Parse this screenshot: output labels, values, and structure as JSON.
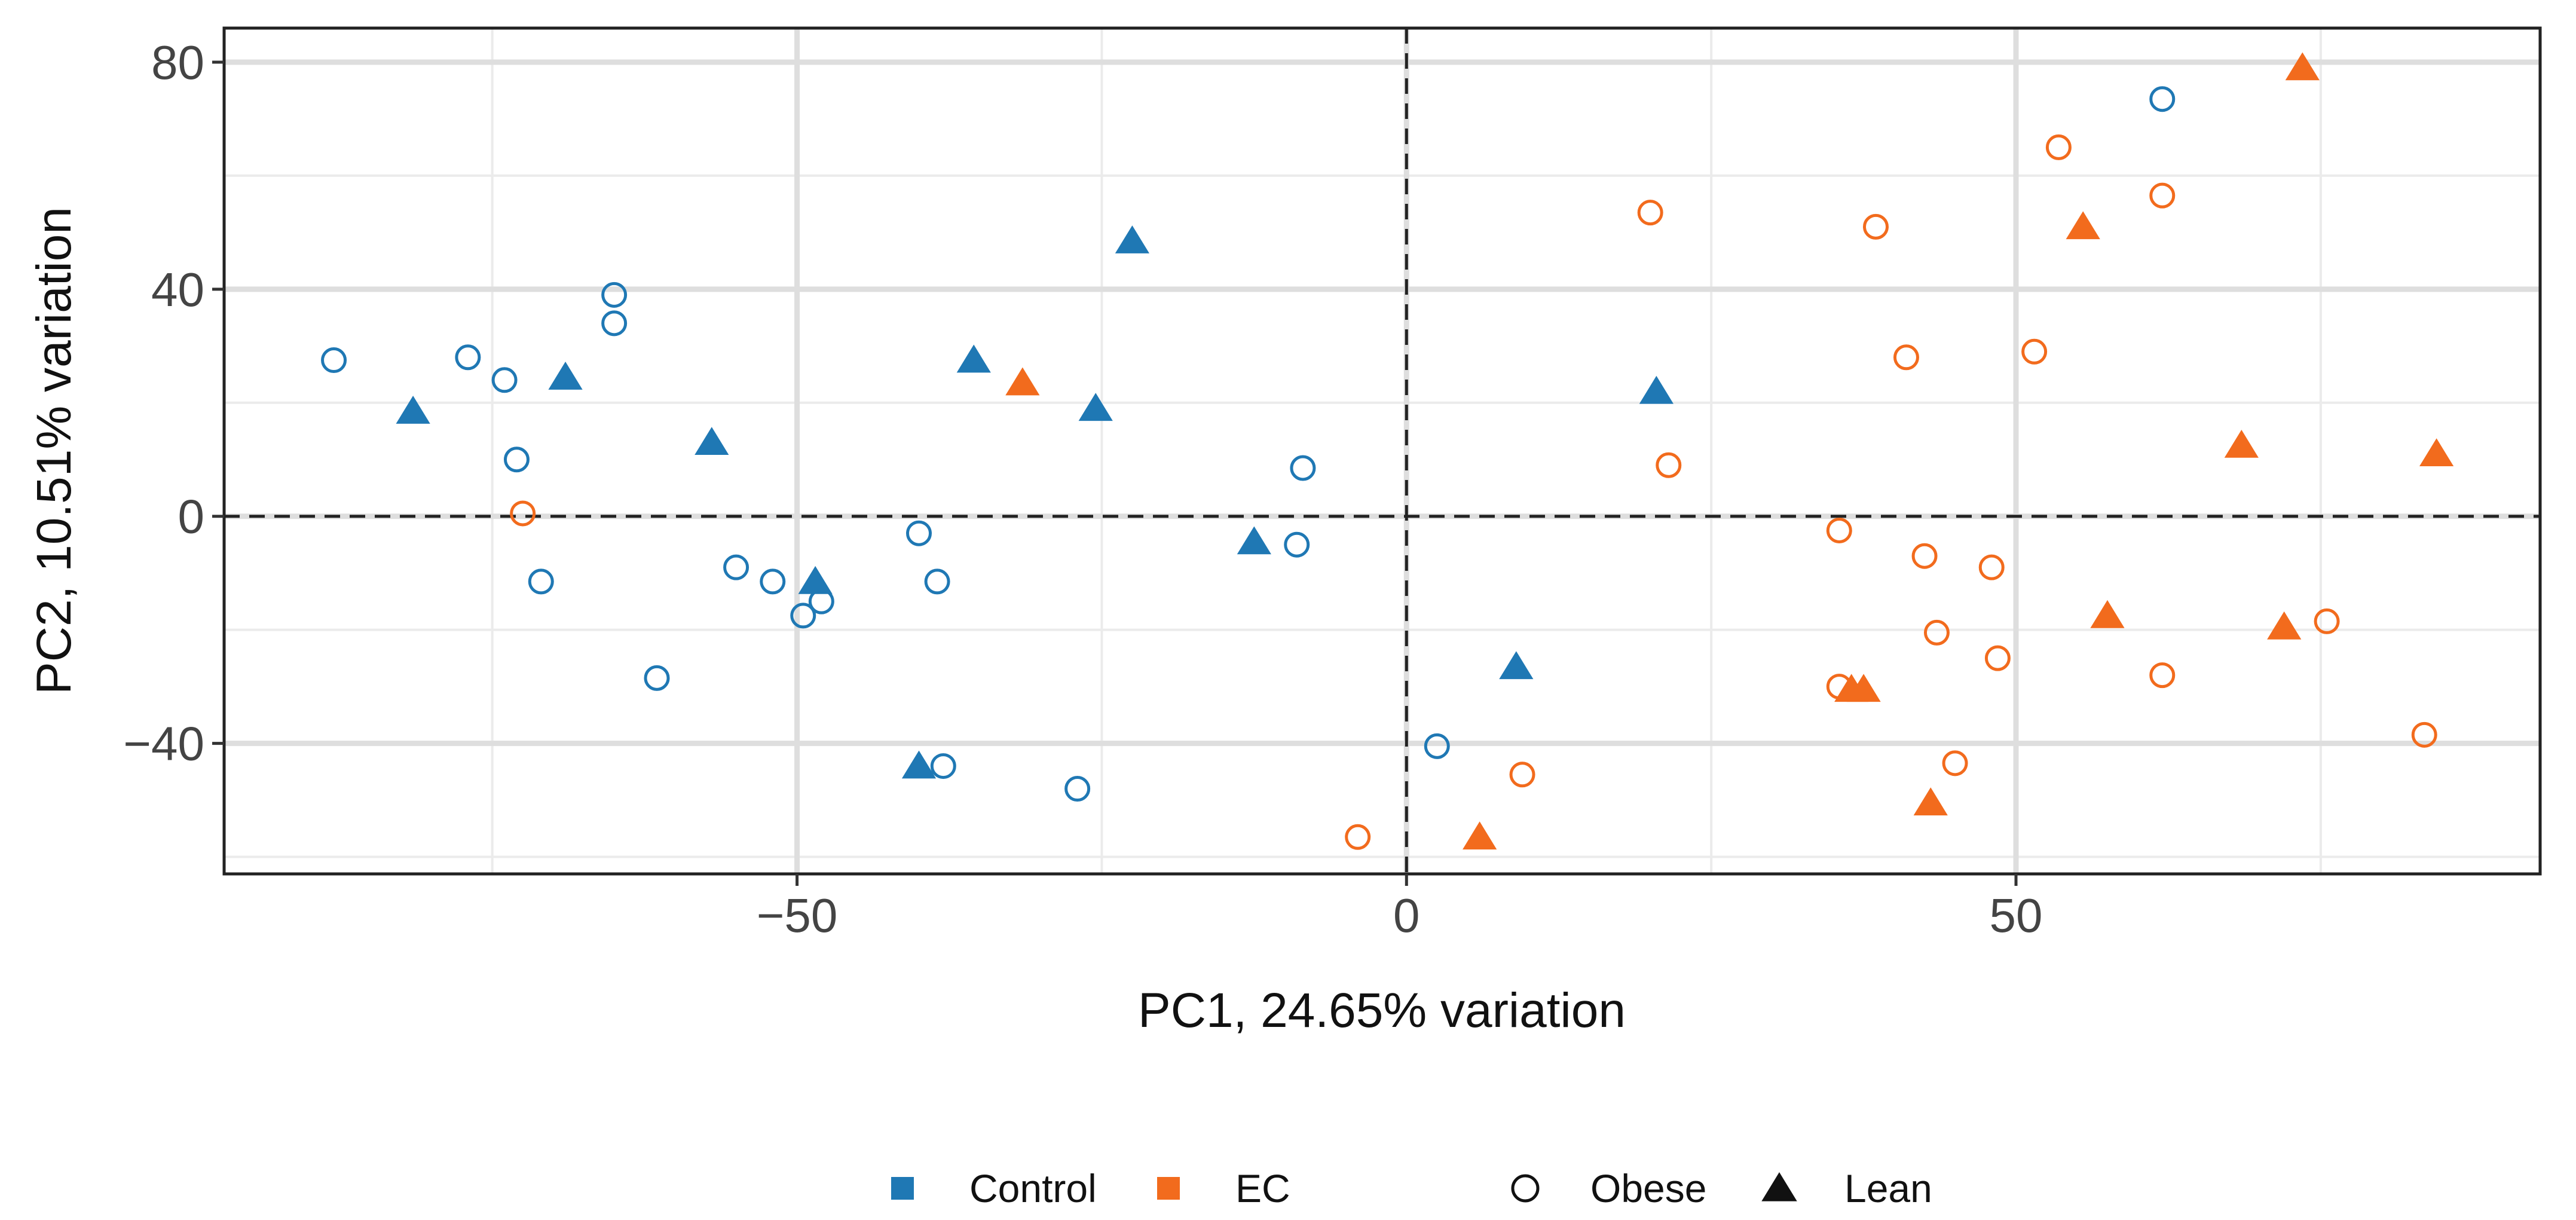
{
  "chart_data": {
    "type": "scatter",
    "xlabel": "PC1, 24.65% variation",
    "ylabel": "PC2, 10.51% variation",
    "xlim": [
      -97,
      93
    ],
    "ylim": [
      -63,
      86
    ],
    "x_ticks": [
      -50,
      0,
      50
    ],
    "x_tick_labels": [
      "−50",
      "0",
      "50"
    ],
    "y_ticks": [
      -40,
      0,
      40,
      80
    ],
    "y_tick_labels": [
      "−40",
      "0",
      "40",
      "80"
    ],
    "x_minor_gridlines": [
      -75,
      -25,
      25,
      75
    ],
    "y_minor_gridlines": [
      -60,
      -20,
      20,
      60
    ],
    "reference_lines": {
      "x": 0,
      "y": 0,
      "style": "dashed"
    },
    "grid": true,
    "colors": {
      "Control": "#1f78b4",
      "EC": "#f26b1d"
    },
    "legend": {
      "position": "bottom",
      "color_entries": [
        {
          "label": "Control",
          "color": "#1f78b4"
        },
        {
          "label": "EC",
          "color": "#f26b1d"
        }
      ],
      "shape_entries": [
        {
          "label": "Obese",
          "shape": "circle-open"
        },
        {
          "label": "Lean",
          "shape": "triangle-filled"
        }
      ]
    },
    "series": [
      {
        "name": "Control / Obese",
        "group": "Control",
        "shape": "circle-open",
        "points": [
          [
            -88,
            27.5
          ],
          [
            -77,
            28
          ],
          [
            -74,
            24
          ],
          [
            -73,
            10
          ],
          [
            -71,
            -11.5
          ],
          [
            -65,
            39
          ],
          [
            -65,
            34
          ],
          [
            -61.5,
            -28.5
          ],
          [
            -55,
            -9
          ],
          [
            -52,
            -11.5
          ],
          [
            -49.5,
            -17.5
          ],
          [
            -48,
            -15
          ],
          [
            -40,
            -3
          ],
          [
            -38.5,
            -11.5
          ],
          [
            -38,
            -44
          ],
          [
            -27,
            -48
          ],
          [
            -9,
            -5
          ],
          [
            -8.5,
            8.5
          ],
          [
            2.5,
            -40.5
          ],
          [
            62,
            73.5
          ]
        ]
      },
      {
        "name": "Control / Lean",
        "group": "Control",
        "shape": "triangle-filled",
        "points": [
          [
            -81.5,
            18.5
          ],
          [
            -69,
            24.5
          ],
          [
            -57,
            13
          ],
          [
            -48.5,
            -11.5
          ],
          [
            -40,
            -44
          ],
          [
            -35.5,
            27.5
          ],
          [
            -25.5,
            19
          ],
          [
            -22.5,
            48.5
          ],
          [
            -12.5,
            -4.5
          ],
          [
            9,
            -26.5
          ],
          [
            20.5,
            22
          ]
        ]
      },
      {
        "name": "EC / Obese",
        "group": "EC",
        "shape": "circle-open",
        "points": [
          [
            -72.5,
            0.5
          ],
          [
            -4,
            -56.5
          ],
          [
            9.5,
            -45.5
          ],
          [
            20,
            53.5
          ],
          [
            21.5,
            9
          ],
          [
            35.5,
            -2.5
          ],
          [
            35.5,
            -30
          ],
          [
            38.5,
            51
          ],
          [
            41,
            28
          ],
          [
            42.5,
            -7
          ],
          [
            43.5,
            -20.5
          ],
          [
            45,
            -43.5
          ],
          [
            48,
            -9
          ],
          [
            48.5,
            -25
          ],
          [
            51.5,
            29
          ],
          [
            53.5,
            65
          ],
          [
            62,
            56.5
          ],
          [
            62,
            -28
          ],
          [
            75.5,
            -18.5
          ],
          [
            83.5,
            -38.5
          ]
        ]
      },
      {
        "name": "EC / Lean",
        "group": "EC",
        "shape": "triangle-filled",
        "points": [
          [
            -31.5,
            23.5
          ],
          [
            6,
            -56.5
          ],
          [
            36.5,
            -30.5
          ],
          [
            37.5,
            -30.5
          ],
          [
            43,
            -50.5
          ],
          [
            55.5,
            51
          ],
          [
            57.5,
            -17.5
          ],
          [
            68.5,
            12.5
          ],
          [
            72,
            -19.5
          ],
          [
            73.5,
            79
          ],
          [
            84.5,
            11
          ]
        ]
      }
    ]
  }
}
